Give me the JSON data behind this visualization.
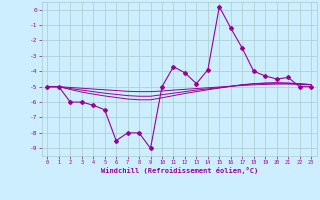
{
  "xlabel": "Windchill (Refroidissement éolien,°C)",
  "bg_color": "#cceeff",
  "line_color": "#990099",
  "grid_color": "#aacccc",
  "x_data": [
    0,
    1,
    2,
    3,
    4,
    5,
    6,
    7,
    8,
    9,
    10,
    11,
    12,
    13,
    14,
    15,
    16,
    17,
    18,
    19,
    20,
    21,
    22,
    23
  ],
  "y_main": [
    -5,
    -5,
    -6,
    -6,
    -6.2,
    -6.5,
    -8.5,
    -8,
    -8,
    -9,
    -5,
    -3.7,
    -4.1,
    -4.8,
    -3.9,
    0.2,
    -1.2,
    -2.5,
    -4,
    -4.3,
    -4.5,
    -4.4,
    -5,
    -5
  ],
  "y_line1": [
    -5.0,
    -5.0,
    -5.05,
    -5.1,
    -5.15,
    -5.2,
    -5.25,
    -5.3,
    -5.32,
    -5.32,
    -5.28,
    -5.22,
    -5.17,
    -5.12,
    -5.07,
    -5.02,
    -4.97,
    -4.92,
    -4.88,
    -4.85,
    -4.83,
    -4.83,
    -4.85,
    -4.88
  ],
  "y_line2": [
    -5.0,
    -5.0,
    -5.12,
    -5.22,
    -5.32,
    -5.42,
    -5.5,
    -5.58,
    -5.62,
    -5.62,
    -5.52,
    -5.42,
    -5.32,
    -5.22,
    -5.14,
    -5.06,
    -4.97,
    -4.88,
    -4.82,
    -4.78,
    -4.77,
    -4.78,
    -4.82,
    -4.87
  ],
  "y_line3": [
    -5.0,
    -5.0,
    -5.18,
    -5.35,
    -5.48,
    -5.6,
    -5.7,
    -5.8,
    -5.85,
    -5.85,
    -5.72,
    -5.58,
    -5.44,
    -5.32,
    -5.2,
    -5.09,
    -4.98,
    -4.87,
    -4.8,
    -4.76,
    -4.74,
    -4.76,
    -4.8,
    -4.86
  ],
  "ylim": [
    -9.5,
    0.5
  ],
  "xlim": [
    -0.5,
    23.5
  ],
  "yticks": [
    0,
    -1,
    -2,
    -3,
    -4,
    -5,
    -6,
    -7,
    -8,
    -9
  ]
}
